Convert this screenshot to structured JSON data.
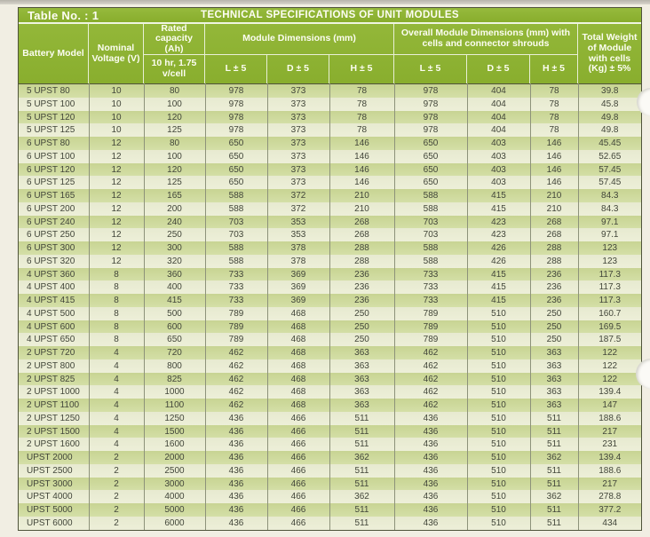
{
  "page": {
    "table_no": "Table No. : 1",
    "title": "TECHNICAL SPECIFICATIONS OF UNIT MODULES"
  },
  "header": {
    "battery_model": "Battery Model",
    "nominal_voltage": "Nominal Voltage (V)",
    "rated_capacity": "Rated capacity (Ah)",
    "rated_capacity_sub": "10 hr, 1.75 v/cell",
    "module_dimensions": "Module Dimensions (mm)",
    "overall_dimensions": "Overall Module Dimensions (mm) with cells and connector shrouds",
    "l_tol": "L ± 5",
    "d_tol": "D ± 5",
    "h_tol": "H ± 5",
    "total_weight": "Total Weight of Module with cells (Kg) ± 5%"
  },
  "colors": {
    "header_green": "#8fb232",
    "row_dark": "#cdd89c",
    "row_light": "#e9ecd2",
    "data_text": "#42463a",
    "header_text": "#fcfdf2"
  },
  "rows": [
    [
      "5 UPST 80",
      "10",
      "80",
      "978",
      "373",
      "78",
      "978",
      "404",
      "78",
      "39.8"
    ],
    [
      "5 UPST 100",
      "10",
      "100",
      "978",
      "373",
      "78",
      "978",
      "404",
      "78",
      "45.8"
    ],
    [
      "5 UPST 120",
      "10",
      "120",
      "978",
      "373",
      "78",
      "978",
      "404",
      "78",
      "49.8"
    ],
    [
      "5 UPST 125",
      "10",
      "125",
      "978",
      "373",
      "78",
      "978",
      "404",
      "78",
      "49.8"
    ],
    [
      "6 UPST 80",
      "12",
      "80",
      "650",
      "373",
      "146",
      "650",
      "403",
      "146",
      "45.45"
    ],
    [
      "6 UPST 100",
      "12",
      "100",
      "650",
      "373",
      "146",
      "650",
      "403",
      "146",
      "52.65"
    ],
    [
      "6 UPST 120",
      "12",
      "120",
      "650",
      "373",
      "146",
      "650",
      "403",
      "146",
      "57.45"
    ],
    [
      "6 UPST 125",
      "12",
      "125",
      "650",
      "373",
      "146",
      "650",
      "403",
      "146",
      "57.45"
    ],
    [
      "6 UPST 165",
      "12",
      "165",
      "588",
      "372",
      "210",
      "588",
      "415",
      "210",
      "84.3"
    ],
    [
      "6 UPST 200",
      "12",
      "200",
      "588",
      "372",
      "210",
      "588",
      "415",
      "210",
      "84.3"
    ],
    [
      "6 UPST 240",
      "12",
      "240",
      "703",
      "353",
      "268",
      "703",
      "423",
      "268",
      "97.1"
    ],
    [
      "6 UPST 250",
      "12",
      "250",
      "703",
      "353",
      "268",
      "703",
      "423",
      "268",
      "97.1"
    ],
    [
      "6 UPST 300",
      "12",
      "300",
      "588",
      "378",
      "288",
      "588",
      "426",
      "288",
      "123"
    ],
    [
      "6 UPST 320",
      "12",
      "320",
      "588",
      "378",
      "288",
      "588",
      "426",
      "288",
      "123"
    ],
    [
      "4 UPST 360",
      "8",
      "360",
      "733",
      "369",
      "236",
      "733",
      "415",
      "236",
      "117.3"
    ],
    [
      "4 UPST 400",
      "8",
      "400",
      "733",
      "369",
      "236",
      "733",
      "415",
      "236",
      "117.3"
    ],
    [
      "4 UPST 415",
      "8",
      "415",
      "733",
      "369",
      "236",
      "733",
      "415",
      "236",
      "117.3"
    ],
    [
      "4 UPST 500",
      "8",
      "500",
      "789",
      "468",
      "250",
      "789",
      "510",
      "250",
      "160.7"
    ],
    [
      "4 UPST 600",
      "8",
      "600",
      "789",
      "468",
      "250",
      "789",
      "510",
      "250",
      "169.5"
    ],
    [
      "4 UPST 650",
      "8",
      "650",
      "789",
      "468",
      "250",
      "789",
      "510",
      "250",
      "187.5"
    ],
    [
      "2 UPST 720",
      "4",
      "720",
      "462",
      "468",
      "363",
      "462",
      "510",
      "363",
      "122"
    ],
    [
      "2 UPST 800",
      "4",
      "800",
      "462",
      "468",
      "363",
      "462",
      "510",
      "363",
      "122"
    ],
    [
      "2 UPST 825",
      "4",
      "825",
      "462",
      "468",
      "363",
      "462",
      "510",
      "363",
      "122"
    ],
    [
      "2 UPST 1000",
      "4",
      "1000",
      "462",
      "468",
      "363",
      "462",
      "510",
      "363",
      "139.4"
    ],
    [
      "2 UPST 1100",
      "4",
      "1100",
      "462",
      "468",
      "363",
      "462",
      "510",
      "363",
      "147"
    ],
    [
      "2 UPST 1250",
      "4",
      "1250",
      "436",
      "466",
      "511",
      "436",
      "510",
      "511",
      "188.6"
    ],
    [
      "2 UPST 1500",
      "4",
      "1500",
      "436",
      "466",
      "511",
      "436",
      "510",
      "511",
      "217"
    ],
    [
      "2 UPST 1600",
      "4",
      "1600",
      "436",
      "466",
      "511",
      "436",
      "510",
      "511",
      "231"
    ],
    [
      "UPST 2000",
      "2",
      "2000",
      "436",
      "466",
      "362",
      "436",
      "510",
      "362",
      "139.4"
    ],
    [
      "UPST 2500",
      "2",
      "2500",
      "436",
      "466",
      "511",
      "436",
      "510",
      "511",
      "188.6"
    ],
    [
      "UPST 3000",
      "2",
      "3000",
      "436",
      "466",
      "511",
      "436",
      "510",
      "511",
      "217"
    ],
    [
      "UPST 4000",
      "2",
      "4000",
      "436",
      "466",
      "362",
      "436",
      "510",
      "362",
      "278.8"
    ],
    [
      "UPST 5000",
      "2",
      "5000",
      "436",
      "466",
      "511",
      "436",
      "510",
      "511",
      "377.2"
    ],
    [
      "UPST 6000",
      "2",
      "6000",
      "436",
      "466",
      "511",
      "436",
      "510",
      "511",
      "434"
    ]
  ]
}
